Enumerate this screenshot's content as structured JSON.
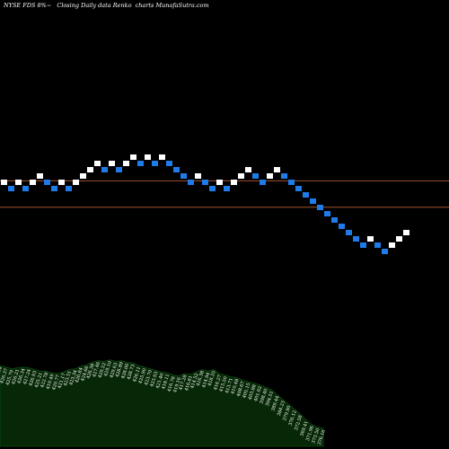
{
  "header": {
    "ticker": "NYSE FDS",
    "change": "8%",
    "arrow": "~",
    "description": "Closing Daily data",
    "chart_kind": "Renko",
    "suffix": "charts",
    "site": "MunafaSutra.com"
  },
  "colors": {
    "background": "#000000",
    "up_brick": "#ffffff",
    "down_brick": "#1e7be8",
    "reference_line": "#a0522d",
    "volume_fill": "#062806",
    "volume_edge": "#0d4a12"
  },
  "chart_data": {
    "type": "renko",
    "bricks": [
      {
        "level": 3,
        "dir": "up"
      },
      {
        "level": 2,
        "dir": "down"
      },
      {
        "level": 3,
        "dir": "up"
      },
      {
        "level": 2,
        "dir": "down"
      },
      {
        "level": 3,
        "dir": "up"
      },
      {
        "level": 4,
        "dir": "up"
      },
      {
        "level": 3,
        "dir": "down"
      },
      {
        "level": 2,
        "dir": "down"
      },
      {
        "level": 3,
        "dir": "up"
      },
      {
        "level": 2,
        "dir": "down"
      },
      {
        "level": 3,
        "dir": "up"
      },
      {
        "level": 4,
        "dir": "up"
      },
      {
        "level": 5,
        "dir": "up"
      },
      {
        "level": 6,
        "dir": "up"
      },
      {
        "level": 5,
        "dir": "down"
      },
      {
        "level": 6,
        "dir": "up"
      },
      {
        "level": 5,
        "dir": "down"
      },
      {
        "level": 6,
        "dir": "up"
      },
      {
        "level": 7,
        "dir": "up"
      },
      {
        "level": 6,
        "dir": "down"
      },
      {
        "level": 7,
        "dir": "up"
      },
      {
        "level": 6,
        "dir": "down"
      },
      {
        "level": 7,
        "dir": "up"
      },
      {
        "level": 6,
        "dir": "down"
      },
      {
        "level": 5,
        "dir": "down"
      },
      {
        "level": 4,
        "dir": "down"
      },
      {
        "level": 3,
        "dir": "down"
      },
      {
        "level": 4,
        "dir": "up"
      },
      {
        "level": 3,
        "dir": "down"
      },
      {
        "level": 2,
        "dir": "down"
      },
      {
        "level": 3,
        "dir": "up"
      },
      {
        "level": 2,
        "dir": "down"
      },
      {
        "level": 3,
        "dir": "up"
      },
      {
        "level": 4,
        "dir": "up"
      },
      {
        "level": 5,
        "dir": "up"
      },
      {
        "level": 4,
        "dir": "down"
      },
      {
        "level": 3,
        "dir": "down"
      },
      {
        "level": 4,
        "dir": "up"
      },
      {
        "level": 5,
        "dir": "up"
      },
      {
        "level": 4,
        "dir": "down"
      },
      {
        "level": 3,
        "dir": "down"
      },
      {
        "level": 2,
        "dir": "down"
      },
      {
        "level": 1,
        "dir": "down"
      },
      {
        "level": 0,
        "dir": "down"
      },
      {
        "level": -1,
        "dir": "down"
      },
      {
        "level": -2,
        "dir": "down"
      },
      {
        "level": -3,
        "dir": "down"
      },
      {
        "level": -4,
        "dir": "down"
      },
      {
        "level": -5,
        "dir": "down"
      },
      {
        "level": -6,
        "dir": "down"
      },
      {
        "level": -7,
        "dir": "down"
      },
      {
        "level": -6,
        "dir": "up"
      },
      {
        "level": -7,
        "dir": "down"
      },
      {
        "level": -8,
        "dir": "down"
      },
      {
        "level": -7,
        "dir": "up"
      },
      {
        "level": -6,
        "dir": "up"
      },
      {
        "level": -5,
        "dir": "up"
      }
    ],
    "reference_levels": [
      3.3,
      -0.9
    ],
    "volume": [
      {
        "value": 100,
        "label": "427.04"
      },
      {
        "value": 98,
        "label": "426.37"
      },
      {
        "value": 96,
        "label": "425.79"
      },
      {
        "value": 97,
        "label": "426.21"
      },
      {
        "value": 98,
        "label": "426.34"
      },
      {
        "value": 97,
        "label": "427.24"
      },
      {
        "value": 95,
        "label": "426.93"
      },
      {
        "value": 93,
        "label": "425.21"
      },
      {
        "value": 93,
        "label": "422.78"
      },
      {
        "value": 91,
        "label": "419.49"
      },
      {
        "value": 90,
        "label": "420.77"
      },
      {
        "value": 92,
        "label": "421.17"
      },
      {
        "value": 95,
        "label": "423.51"
      },
      {
        "value": 96,
        "label": "423.34"
      },
      {
        "value": 99,
        "label": "426.84"
      },
      {
        "value": 101,
        "label": "424.66"
      },
      {
        "value": 104,
        "label": "426.38"
      },
      {
        "value": 106,
        "label": "427.46"
      },
      {
        "value": 105,
        "label": "429.52"
      },
      {
        "value": 107,
        "label": "429.10"
      },
      {
        "value": 105,
        "label": "429.63"
      },
      {
        "value": 106,
        "label": "428.89"
      },
      {
        "value": 104,
        "label": "428.06"
      },
      {
        "value": 103,
        "label": "428.73"
      },
      {
        "value": 100,
        "label": "426.11"
      },
      {
        "value": 98,
        "label": "425.90"
      },
      {
        "value": 96,
        "label": "423.70"
      },
      {
        "value": 94,
        "label": "423.93"
      },
      {
        "value": 92,
        "label": "421.40"
      },
      {
        "value": 91,
        "label": "418.11"
      },
      {
        "value": 88,
        "label": "416.78"
      },
      {
        "value": 87,
        "label": "419.16"
      },
      {
        "value": 90,
        "label": "417.28"
      },
      {
        "value": 89,
        "label": "416.81"
      },
      {
        "value": 92,
        "label": "414.52"
      },
      {
        "value": 95,
        "label": "416.38"
      },
      {
        "value": 93,
        "label": "414.94"
      },
      {
        "value": 95,
        "label": "418.35"
      },
      {
        "value": 90,
        "label": "416.27"
      },
      {
        "value": 88,
        "label": "415.50"
      },
      {
        "value": 86,
        "label": "413.71"
      },
      {
        "value": 85,
        "label": "410.48"
      },
      {
        "value": 82,
        "label": "408.67"
      },
      {
        "value": 80,
        "label": "405.15"
      },
      {
        "value": 78,
        "label": "403.88"
      },
      {
        "value": 76,
        "label": "401.62"
      },
      {
        "value": 73,
        "label": "398.40"
      },
      {
        "value": 70,
        "label": "394.51"
      },
      {
        "value": 64,
        "label": "389.44"
      },
      {
        "value": 58,
        "label": "384.23"
      },
      {
        "value": 52,
        "label": "379.90"
      },
      {
        "value": 46,
        "label": "376.12"
      },
      {
        "value": 40,
        "label": "372.58"
      },
      {
        "value": 33,
        "label": "369.41"
      },
      {
        "value": 27,
        "label": "371.96"
      },
      {
        "value": 24,
        "label": "373.50"
      },
      {
        "value": 22,
        "label": "376.16"
      }
    ]
  }
}
